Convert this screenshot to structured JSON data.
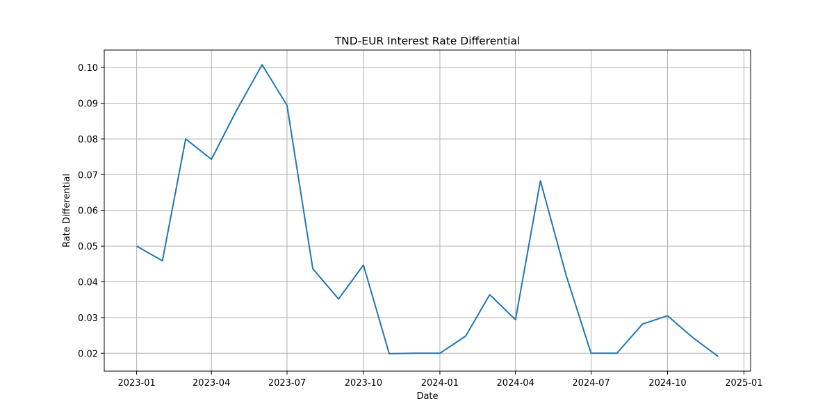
{
  "chart_data": {
    "type": "line",
    "title": "TND-EUR Interest Rate Differential",
    "xlabel": "Date",
    "ylabel": "Rate Differential",
    "x_tick_labels": [
      "2023-01",
      "2023-04",
      "2023-07",
      "2023-10",
      "2024-01",
      "2024-04",
      "2024-07",
      "2024-10",
      "2025-01"
    ],
    "y_tick_labels": [
      "0.02",
      "0.03",
      "0.04",
      "0.05",
      "0.06",
      "0.07",
      "0.08",
      "0.09",
      "0.10"
    ],
    "x": [
      "2023-01-01",
      "2023-02-01",
      "2023-03-01",
      "2023-04-01",
      "2023-05-01",
      "2023-06-01",
      "2023-07-01",
      "2023-08-01",
      "2023-09-01",
      "2023-10-01",
      "2023-11-01",
      "2023-12-01",
      "2024-01-01",
      "2024-02-01",
      "2024-03-01",
      "2024-04-01",
      "2024-05-01",
      "2024-06-01",
      "2024-07-01",
      "2024-08-01",
      "2024-09-01",
      "2024-10-01",
      "2024-11-01",
      "2024-12-01"
    ],
    "series": [
      {
        "color": "#1f77b4",
        "values": [
          0.05,
          0.0459,
          0.08,
          0.0743,
          0.0879,
          0.1008,
          0.0894,
          0.0437,
          0.0352,
          0.0447,
          0.0199,
          0.02,
          0.02,
          0.0248,
          0.0364,
          0.0294,
          0.0683,
          0.0418,
          0.02,
          0.02,
          0.0282,
          0.0305,
          0.0243,
          0.0191
        ]
      }
    ],
    "xlim": [
      "2022-11-23",
      "2025-01-09"
    ],
    "ylim": [
      0.015,
      0.1049
    ],
    "grid": true
  }
}
